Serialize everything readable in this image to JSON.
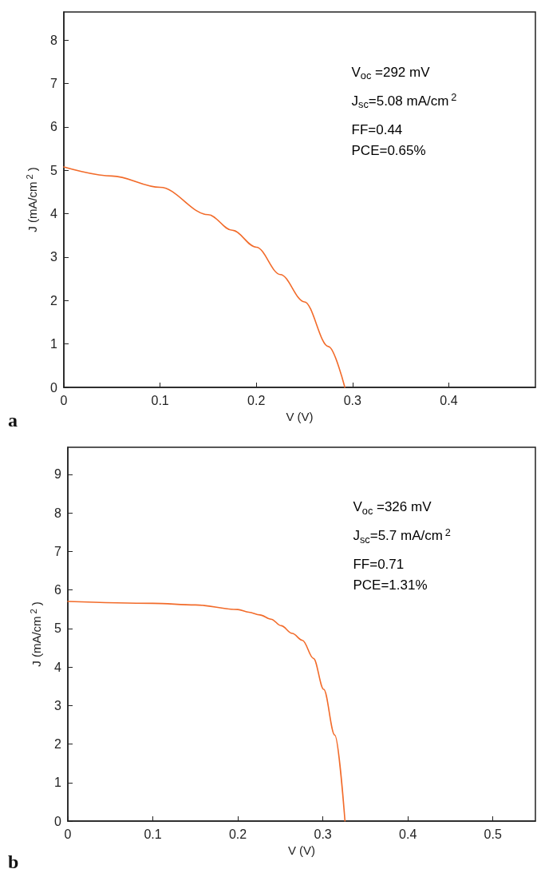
{
  "chart_data": [
    {
      "type": "line",
      "title": "a",
      "xlabel": "V (V)",
      "ylabel": "J (mA/cm$^{2}$)",
      "annotations": [
        "V$_{oc}$ =292 mV",
        "J$_{sc}$=5.08 mA/cm$^{2}$",
        "FF=0.44",
        "PCE=0.65%"
      ],
      "series": [
        {
          "color": "#f26b2a",
          "x": [
            0,
            0.05,
            0.1,
            0.15,
            0.175,
            0.2,
            0.225,
            0.25,
            0.275,
            0.292
          ],
          "values": [
            5.08,
            4.87,
            4.61,
            3.98,
            3.62,
            3.23,
            2.6,
            1.97,
            0.94,
            0
          ]
        }
      ],
      "xlim": [
        0,
        0.49
      ],
      "xticks": [
        0,
        0.1,
        0.2,
        0.3,
        0.4
      ],
      "ylim": [
        0,
        8.65
      ],
      "yticks": [
        0,
        1,
        2,
        3,
        4,
        5,
        6,
        7,
        8
      ],
      "grid": false,
      "marker": "none",
      "line_style": "solid"
    },
    {
      "type": "line",
      "title": "b",
      "xlabel": "V (V)",
      "ylabel": "J (mA/cm$^{2}$)",
      "annotations": [
        "V$_{oc}$ =326 mV",
        "J$_{sc}$=5.7 mA/cm$^{2}$",
        "FF=0.71",
        "PCE=1.31%"
      ],
      "series": [
        {
          "color": "#f26b2a",
          "x": [
            0,
            0.1,
            0.15,
            0.2,
            0.213,
            0.226,
            0.239,
            0.251,
            0.264,
            0.276,
            0.289,
            0.301,
            0.314,
            0.326
          ],
          "values": [
            5.7,
            5.65,
            5.61,
            5.49,
            5.42,
            5.35,
            5.24,
            5.07,
            4.87,
            4.69,
            4.22,
            3.42,
            2.23,
            0
          ]
        }
      ],
      "xlim": [
        0,
        0.55
      ],
      "xticks": [
        0,
        0.1,
        0.2,
        0.3,
        0.4,
        0.5
      ],
      "ylim": [
        0,
        9.7
      ],
      "yticks": [
        0,
        1,
        2,
        3,
        4,
        5,
        6,
        7,
        8,
        9
      ],
      "grid": false,
      "marker": "none",
      "line_style": "solid"
    }
  ]
}
